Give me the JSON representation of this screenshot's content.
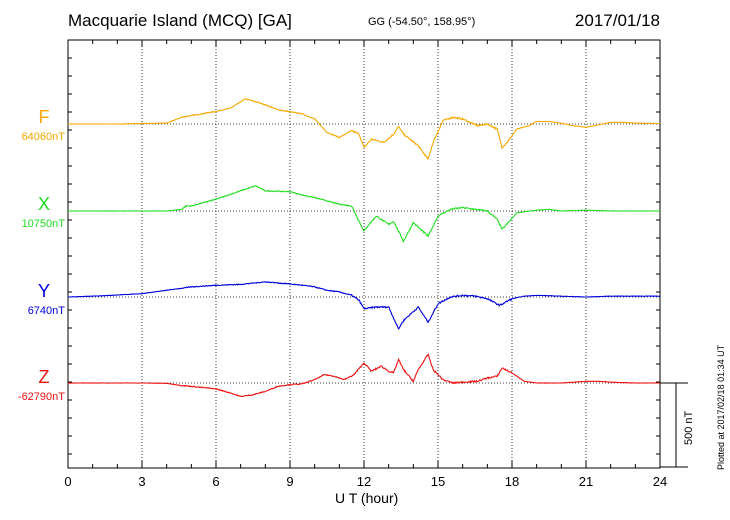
{
  "header": {
    "station": "Macquarie Island (MCQ)  [GA]",
    "coords": "GG (-54.50°, 158.95°)",
    "date": "2017/01/18"
  },
  "footer": {
    "plotted": "Plotted at 2017/02/18 01:34 UT"
  },
  "colors": {
    "F": "#f5a800",
    "X": "#22dd22",
    "Y": "#0000dd",
    "Z": "#ee1111"
  },
  "chart_data": {
    "type": "line",
    "xlabel": "U T (hour)",
    "xlim": [
      0,
      24
    ],
    "xticks": [
      "0",
      "3",
      "6",
      "9",
      "12",
      "15",
      "18",
      "21",
      "24"
    ],
    "scale_bar": {
      "label": "500 nT",
      "value_nT": 500
    },
    "y_range_nT": 2000,
    "series": [
      {
        "name": "F",
        "baseline_label": "64060nT",
        "baseline_nT": 64060,
        "points": [
          [
            0,
            0
          ],
          [
            1,
            0
          ],
          [
            2,
            0
          ],
          [
            3,
            3
          ],
          [
            4,
            5
          ],
          [
            4.6,
            40
          ],
          [
            5,
            50
          ],
          [
            6,
            75
          ],
          [
            6.6,
            95
          ],
          [
            7.2,
            150
          ],
          [
            8,
            115
          ],
          [
            8.5,
            85
          ],
          [
            9.5,
            60
          ],
          [
            10,
            30
          ],
          [
            10.5,
            -50
          ],
          [
            11,
            -80
          ],
          [
            11.5,
            -40
          ],
          [
            11.8,
            -60
          ],
          [
            12,
            -140
          ],
          [
            12.3,
            -90
          ],
          [
            12.8,
            -110
          ],
          [
            13.2,
            -60
          ],
          [
            13.4,
            -15
          ],
          [
            13.6,
            -60
          ],
          [
            14.2,
            -130
          ],
          [
            14.6,
            -210
          ],
          [
            14.8,
            -110
          ],
          [
            15.2,
            20
          ],
          [
            15.6,
            40
          ],
          [
            16,
            30
          ],
          [
            16.6,
            -10
          ],
          [
            17,
            0
          ],
          [
            17.4,
            -30
          ],
          [
            17.6,
            -140
          ],
          [
            17.8,
            -110
          ],
          [
            18.2,
            -30
          ],
          [
            18.7,
            -10
          ],
          [
            19,
            15
          ],
          [
            19.5,
            15
          ],
          [
            20,
            5
          ],
          [
            20.5,
            -10
          ],
          [
            21,
            -20
          ],
          [
            21.5,
            -5
          ],
          [
            22,
            10
          ],
          [
            22.5,
            10
          ],
          [
            23,
            5
          ],
          [
            24,
            3
          ]
        ]
      },
      {
        "name": "X",
        "baseline_label": "10750nT",
        "baseline_nT": 10750,
        "points": [
          [
            0,
            0
          ],
          [
            1,
            0
          ],
          [
            2,
            0
          ],
          [
            3,
            0
          ],
          [
            4,
            0
          ],
          [
            4.6,
            10
          ],
          [
            4.8,
            30
          ],
          [
            5,
            30
          ],
          [
            6,
            70
          ],
          [
            7,
            120
          ],
          [
            7.6,
            150
          ],
          [
            8,
            120
          ],
          [
            9,
            115
          ],
          [
            9.5,
            95
          ],
          [
            10,
            80
          ],
          [
            10.5,
            60
          ],
          [
            11,
            40
          ],
          [
            11.5,
            30
          ],
          [
            12,
            -120
          ],
          [
            12.2,
            -80
          ],
          [
            12.5,
            -30
          ],
          [
            13,
            -80
          ],
          [
            13.2,
            -60
          ],
          [
            13.6,
            -180
          ],
          [
            14,
            -70
          ],
          [
            14.6,
            -150
          ],
          [
            15,
            -30
          ],
          [
            15.5,
            10
          ],
          [
            16,
            20
          ],
          [
            16.5,
            10
          ],
          [
            17,
            0
          ],
          [
            17.4,
            -50
          ],
          [
            17.6,
            -110
          ],
          [
            17.9,
            -60
          ],
          [
            18.2,
            -10
          ],
          [
            19,
            5
          ],
          [
            19.5,
            10
          ],
          [
            20,
            0
          ],
          [
            21,
            5
          ],
          [
            22,
            0
          ],
          [
            23,
            0
          ],
          [
            24,
            0
          ]
        ]
      },
      {
        "name": "Y",
        "baseline_label": "6740nT",
        "baseline_nT": 6740,
        "points": [
          [
            0,
            0
          ],
          [
            1,
            5
          ],
          [
            2,
            12
          ],
          [
            3,
            20
          ],
          [
            4,
            40
          ],
          [
            5,
            60
          ],
          [
            6,
            70
          ],
          [
            7,
            75
          ],
          [
            8,
            90
          ],
          [
            8.8,
            80
          ],
          [
            9.5,
            70
          ],
          [
            10,
            60
          ],
          [
            10.5,
            40
          ],
          [
            11,
            30
          ],
          [
            11.5,
            10
          ],
          [
            11.8,
            -20
          ],
          [
            12,
            -70
          ],
          [
            12.5,
            -60
          ],
          [
            13,
            -60
          ],
          [
            13.4,
            -190
          ],
          [
            13.6,
            -140
          ],
          [
            14.2,
            -60
          ],
          [
            14.6,
            -150
          ],
          [
            15,
            -40
          ],
          [
            15.5,
            0
          ],
          [
            16,
            10
          ],
          [
            16.5,
            5
          ],
          [
            17,
            -10
          ],
          [
            17.5,
            -50
          ],
          [
            18,
            -10
          ],
          [
            18.5,
            5
          ],
          [
            19,
            10
          ],
          [
            20,
            5
          ],
          [
            21,
            0
          ],
          [
            22,
            5
          ],
          [
            23,
            5
          ],
          [
            24,
            5
          ]
        ]
      },
      {
        "name": "Z",
        "baseline_label": "-62790nT",
        "baseline_nT": -62790,
        "points": [
          [
            0,
            0
          ],
          [
            1,
            0
          ],
          [
            2,
            0
          ],
          [
            3,
            0
          ],
          [
            4,
            -2
          ],
          [
            4.6,
            -15
          ],
          [
            5,
            -20
          ],
          [
            6,
            -35
          ],
          [
            6.6,
            -60
          ],
          [
            7,
            -80
          ],
          [
            7.5,
            -70
          ],
          [
            8,
            -50
          ],
          [
            8.5,
            -20
          ],
          [
            9,
            -10
          ],
          [
            9.5,
            -5
          ],
          [
            10,
            20
          ],
          [
            10.4,
            50
          ],
          [
            10.8,
            40
          ],
          [
            11.2,
            20
          ],
          [
            11.6,
            50
          ],
          [
            12,
            120
          ],
          [
            12.3,
            70
          ],
          [
            12.7,
            100
          ],
          [
            13,
            70
          ],
          [
            13.2,
            60
          ],
          [
            13.4,
            140
          ],
          [
            13.6,
            80
          ],
          [
            14,
            10
          ],
          [
            14.2,
            80
          ],
          [
            14.6,
            170
          ],
          [
            14.8,
            80
          ],
          [
            15.2,
            20
          ],
          [
            15.6,
            0
          ],
          [
            16,
            5
          ],
          [
            16.6,
            10
          ],
          [
            17,
            30
          ],
          [
            17.4,
            40
          ],
          [
            17.6,
            90
          ],
          [
            18,
            60
          ],
          [
            18.5,
            10
          ],
          [
            19,
            0
          ],
          [
            20,
            0
          ],
          [
            21,
            10
          ],
          [
            21.5,
            10
          ],
          [
            22,
            5
          ],
          [
            23,
            0
          ],
          [
            24,
            0
          ]
        ]
      }
    ]
  }
}
